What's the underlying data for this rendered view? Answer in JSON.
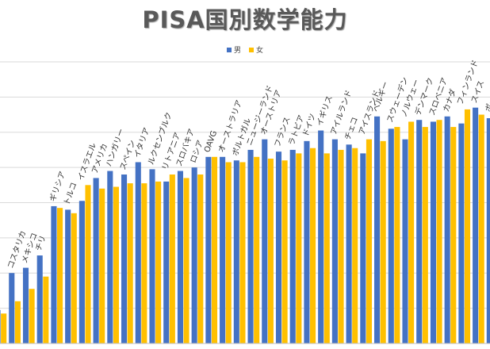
{
  "chart_data": {
    "type": "bar",
    "title": "PISA国別数学能力",
    "xlabel": "",
    "ylabel": "",
    "ylim": [
      380,
      540
    ],
    "grid": true,
    "legend_position": "top",
    "categories": [
      "",
      "コスタリカ",
      "メキシコ",
      "チリ",
      "ギリシア",
      "トルコ",
      "イスラエル",
      "アメリカ",
      "ハンガリー",
      "スペイン",
      "イタリア",
      "ルクセンブルク",
      "リトアニア",
      "スロバキア",
      "ロシア",
      "OAVG",
      "オーストラリア",
      "ポルトガル",
      "ニュージーランド",
      "オーストリア",
      "フランス",
      "ラトビア",
      "ドイツ",
      "イギリス",
      "アイルランド",
      "チェコ",
      "アイスランド",
      "ベルギー",
      "スウェーデン",
      "ノルウェー",
      "デンマーク",
      "スロベニア",
      "カナダ",
      "フィンランド",
      "スイス",
      "ポーランド"
    ],
    "series": [
      {
        "name": "男",
        "color": "#4472c4",
        "values": [
          399,
          420,
          423,
          430,
          458,
          456,
          461,
          474,
          478,
          476,
          483,
          479,
          472,
          478,
          480,
          486,
          486,
          484,
          490,
          496,
          489,
          490,
          495,
          501,
          496,
          493,
          488,
          509,
          502,
          496,
          507,
          506,
          509,
          505,
          514,
          508
        ]
      },
      {
        "name": "女",
        "color": "#ffc000",
        "values": [
          397,
          404,
          411,
          418,
          457,
          454,
          470,
          468,
          469,
          471,
          471,
          472,
          476,
          474,
          476,
          486,
          483,
          483,
          486,
          485,
          484,
          488,
          491,
          488,
          490,
          491,
          496,
          495,
          503,
          506,
          503,
          507,
          503,
          513,
          510,
          509
        ]
      }
    ]
  },
  "legend": {
    "male_label": "男",
    "female_label": "女",
    "male_color": "#4472c4",
    "female_color": "#ffc000"
  }
}
